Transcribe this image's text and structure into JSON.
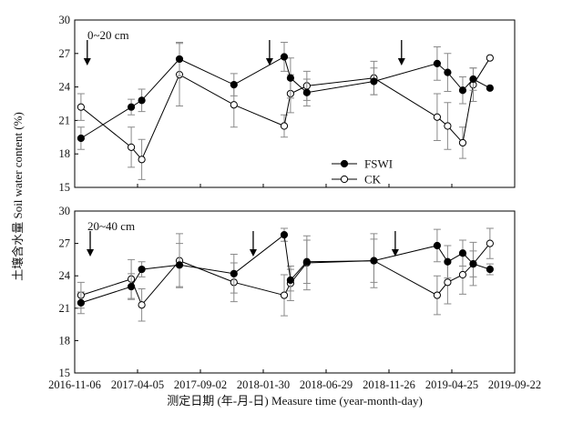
{
  "chart_data": {
    "type": "line",
    "y_axis_label": "土壤含水量 Soil water content (%)",
    "x_axis_label": "测定日期 (年-月-日) Measure time (year-month-day)",
    "x_ticks": [
      "2016-11-06",
      "2017-04-05",
      "2017-09-02",
      "2018-01-30",
      "2018-06-29",
      "2018-11-26",
      "2019-04-25",
      "2019-09-22"
    ],
    "legend": [
      {
        "name": "FSWI",
        "color": "#000000",
        "marker": "filled-circle"
      },
      {
        "name": "CK",
        "color": "#ffffff",
        "marker": "open-circle"
      }
    ],
    "panels": [
      {
        "label": "0~20 cm",
        "ylim": [
          15,
          30
        ],
        "y_ticks": [
          15,
          18,
          21,
          24,
          27,
          30
        ],
        "arrows": [
          "2016-12-06",
          "2018-02-14",
          "2018-12-26"
        ],
        "series": [
          {
            "name": "FSWI",
            "x": [
              "2016-11-21",
              "2017-03-21",
              "2017-04-15",
              "2017-07-14",
              "2017-11-21",
              "2018-03-21",
              "2018-04-05",
              "2018-05-14",
              "2018-10-21",
              "2019-03-21",
              "2019-04-15",
              "2019-05-21",
              "2019-06-15",
              "2019-07-25"
            ],
            "y": [
              19.4,
              22.2,
              22.8,
              26.5,
              24.2,
              26.7,
              24.8,
              23.5,
              24.5,
              26.1,
              25.3,
              23.7,
              24.7,
              23.9
            ],
            "err": [
              1.0,
              0.7,
              1.0,
              1.5,
              1.0,
              1.3,
              1.8,
              1.2,
              1.2,
              1.5,
              1.7,
              1.2,
              1.0,
              0.0
            ]
          },
          {
            "name": "CK",
            "x": [
              "2016-11-21",
              "2017-03-21",
              "2017-04-15",
              "2017-07-14",
              "2017-11-21",
              "2018-03-21",
              "2018-04-05",
              "2018-05-14",
              "2018-10-21",
              "2019-03-21",
              "2019-04-15",
              "2019-05-21",
              "2019-06-15",
              "2019-07-25"
            ],
            "y": [
              22.2,
              18.6,
              17.5,
              25.1,
              22.4,
              20.5,
              23.4,
              24.1,
              24.8,
              21.3,
              20.5,
              19.0,
              24.2,
              26.6
            ],
            "err": [
              1.2,
              1.8,
              1.8,
              2.8,
              2.0,
              1.0,
              1.7,
              1.3,
              1.5,
              2.1,
              2.1,
              1.4,
              1.5,
              0.0
            ]
          }
        ]
      },
      {
        "label": "20~40 cm",
        "ylim": [
          15,
          30
        ],
        "y_ticks": [
          15,
          18,
          21,
          24,
          27,
          30
        ],
        "arrows": [
          "2016-12-13",
          "2018-01-06",
          "2018-12-11"
        ],
        "series": [
          {
            "name": "FSWI",
            "x": [
              "2016-11-21",
              "2017-03-21",
              "2017-04-15",
              "2017-07-14",
              "2017-11-21",
              "2018-03-21",
              "2018-04-05",
              "2018-05-14",
              "2018-10-21",
              "2019-03-21",
              "2019-04-15",
              "2019-05-21",
              "2019-06-15",
              "2019-07-25"
            ],
            "y": [
              21.5,
              23.0,
              24.6,
              25.0,
              24.2,
              27.8,
              23.6,
              25.3,
              25.4,
              26.8,
              25.3,
              26.1,
              25.1,
              24.6
            ],
            "err": [
              1.0,
              1.2,
              0.7,
              2.0,
              1.8,
              0.6,
              1.0,
              2.0,
              2.0,
              1.5,
              1.5,
              1.2,
              1.2,
              0.5
            ]
          },
          {
            "name": "CK",
            "x": [
              "2016-11-21",
              "2017-03-21",
              "2017-04-15",
              "2017-07-14",
              "2017-11-21",
              "2018-03-21",
              "2018-04-05",
              "2018-05-14",
              "2018-10-21",
              "2019-03-21",
              "2019-04-15",
              "2019-05-21",
              "2019-06-15",
              "2019-07-25"
            ],
            "y": [
              22.2,
              23.7,
              21.3,
              25.4,
              23.4,
              22.2,
              23.3,
              25.2,
              25.4,
              22.2,
              23.4,
              24.1,
              25.1,
              27.0
            ],
            "err": [
              1.2,
              1.8,
              1.5,
              2.5,
              1.8,
              1.9,
              1.6,
              2.5,
              2.5,
              1.8,
              2.0,
              1.8,
              2.0,
              1.4
            ]
          }
        ]
      }
    ]
  }
}
